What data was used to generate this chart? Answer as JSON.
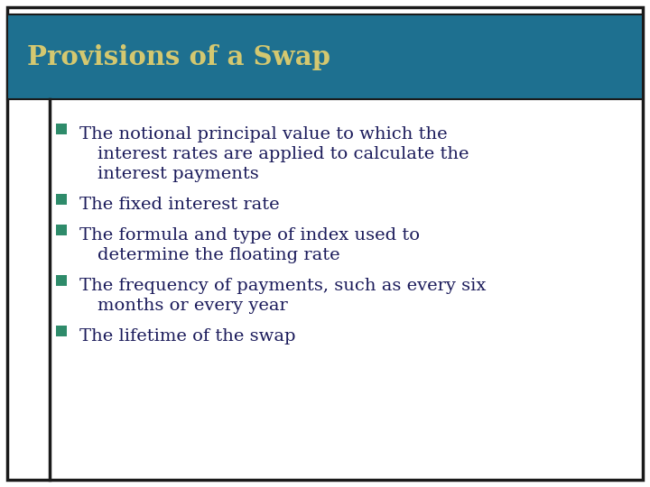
{
  "title": "Provisions of a Swap",
  "title_color": "#D4C870",
  "title_bg_color": "#1E7090",
  "title_border_color": "#1A1A1A",
  "background_color": "#FFFFFF",
  "outer_border_color": "#1A1A1A",
  "left_line_color": "#1A1A1A",
  "bullet_color": "#2E8B6A",
  "text_color": "#1A1A5A",
  "bullet_items": [
    [
      "The notional principal value to which the",
      "interest rates are applied to calculate the",
      "interest payments"
    ],
    [
      "The fixed interest rate"
    ],
    [
      "The formula and type of index used to",
      "determine the floating rate"
    ],
    [
      "The frequency of payments, such as every six",
      "months or every year"
    ],
    [
      "The lifetime of the swap"
    ]
  ],
  "figsize": [
    7.2,
    5.4
  ],
  "dpi": 100
}
